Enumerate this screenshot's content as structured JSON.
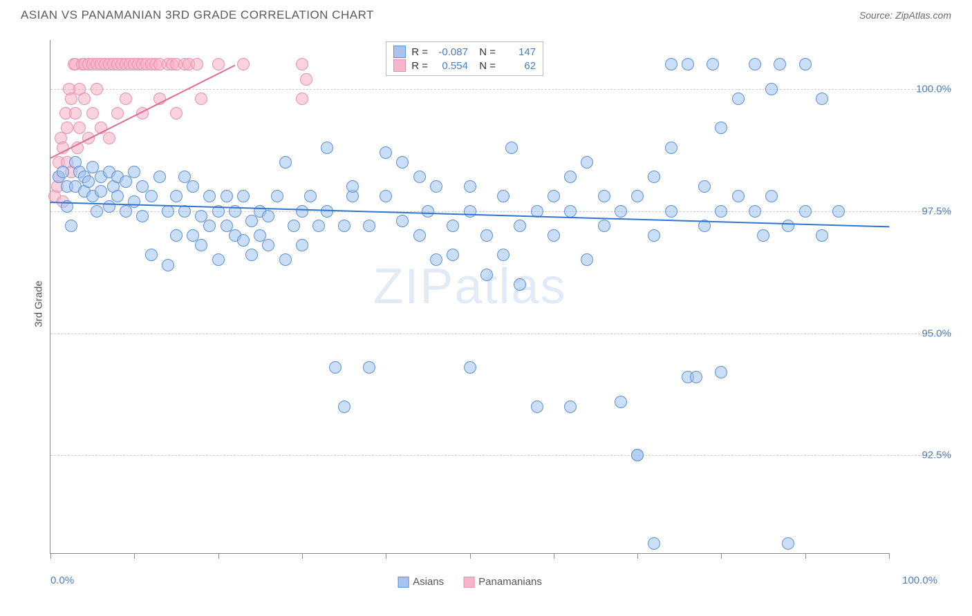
{
  "title": "ASIAN VS PANAMANIAN 3RD GRADE CORRELATION CHART",
  "source": "Source: ZipAtlas.com",
  "ylabel": "3rd Grade",
  "watermark": {
    "zip": "ZIP",
    "atlas": "atlas"
  },
  "chart": {
    "type": "scatter",
    "background_color": "#ffffff",
    "grid_color": "#cccccc",
    "axis_color": "#888888",
    "xlim": [
      0,
      100
    ],
    "ylim": [
      90.5,
      101
    ],
    "xtick_step": 10,
    "yticks": [
      92.5,
      95.0,
      97.5,
      100.0
    ],
    "ytick_labels": [
      "92.5%",
      "95.0%",
      "97.5%",
      "100.0%"
    ],
    "xlabel_min": "0.0%",
    "xlabel_max": "100.0%",
    "marker_radius": 9,
    "marker_stroke_width": 1.5,
    "series": [
      {
        "name": "Asians",
        "label": "Asians",
        "fill_color": "rgba(160,195,240,0.55)",
        "stroke_color": "#5b8fd6",
        "swatch_fill": "#a9c4ec",
        "swatch_border": "#5b8fd6",
        "R": "-0.087",
        "N": "147",
        "trend": {
          "x1": 0,
          "y1": 97.7,
          "x2": 100,
          "y2": 97.2,
          "color": "#2f74d0",
          "width": 2
        },
        "points": [
          [
            1,
            98.2
          ],
          [
            1.5,
            98.3
          ],
          [
            2,
            98.0
          ],
          [
            2,
            97.6
          ],
          [
            2.5,
            97.2
          ],
          [
            3,
            98.5
          ],
          [
            3,
            98.0
          ],
          [
            3.5,
            98.3
          ],
          [
            4,
            97.9
          ],
          [
            4,
            98.2
          ],
          [
            4.5,
            98.1
          ],
          [
            5,
            98.4
          ],
          [
            5,
            97.8
          ],
          [
            5.5,
            97.5
          ],
          [
            6,
            98.2
          ],
          [
            6,
            97.9
          ],
          [
            7,
            98.3
          ],
          [
            7,
            97.6
          ],
          [
            7.5,
            98.0
          ],
          [
            8,
            97.8
          ],
          [
            8,
            98.2
          ],
          [
            9,
            97.5
          ],
          [
            9,
            98.1
          ],
          [
            10,
            97.7
          ],
          [
            10,
            98.3
          ],
          [
            11,
            98.0
          ],
          [
            11,
            97.4
          ],
          [
            12,
            97.8
          ],
          [
            12,
            96.6
          ],
          [
            13,
            98.2
          ],
          [
            14,
            97.5
          ],
          [
            14,
            96.4
          ],
          [
            15,
            97.0
          ],
          [
            15,
            97.8
          ],
          [
            16,
            97.5
          ],
          [
            16,
            98.2
          ],
          [
            17,
            97.0
          ],
          [
            17,
            98.0
          ],
          [
            18,
            97.4
          ],
          [
            18,
            96.8
          ],
          [
            19,
            97.2
          ],
          [
            19,
            97.8
          ],
          [
            20,
            97.5
          ],
          [
            20,
            96.5
          ],
          [
            21,
            97.8
          ],
          [
            21,
            97.2
          ],
          [
            22,
            97.0
          ],
          [
            22,
            97.5
          ],
          [
            23,
            97.8
          ],
          [
            23,
            96.9
          ],
          [
            24,
            96.6
          ],
          [
            24,
            97.3
          ],
          [
            25,
            97.5
          ],
          [
            25,
            97.0
          ],
          [
            26,
            96.8
          ],
          [
            26,
            97.4
          ],
          [
            27,
            97.8
          ],
          [
            28,
            96.5
          ],
          [
            28,
            98.5
          ],
          [
            29,
            97.2
          ],
          [
            30,
            97.5
          ],
          [
            30,
            96.8
          ],
          [
            31,
            97.8
          ],
          [
            32,
            97.2
          ],
          [
            33,
            98.8
          ],
          [
            33,
            97.5
          ],
          [
            34,
            94.3
          ],
          [
            35,
            97.2
          ],
          [
            35,
            93.5
          ],
          [
            36,
            97.8
          ],
          [
            36,
            98.0
          ],
          [
            38,
            97.2
          ],
          [
            38,
            94.3
          ],
          [
            40,
            98.7
          ],
          [
            40,
            97.8
          ],
          [
            42,
            97.3
          ],
          [
            42,
            98.5
          ],
          [
            44,
            97.0
          ],
          [
            44,
            98.2
          ],
          [
            45,
            97.5
          ],
          [
            46,
            96.5
          ],
          [
            46,
            98.0
          ],
          [
            48,
            97.2
          ],
          [
            48,
            96.6
          ],
          [
            50,
            97.5
          ],
          [
            50,
            98.0
          ],
          [
            50,
            94.3
          ],
          [
            52,
            97.0
          ],
          [
            52,
            96.2
          ],
          [
            54,
            97.8
          ],
          [
            54,
            96.6
          ],
          [
            55,
            98.8
          ],
          [
            56,
            97.2
          ],
          [
            56,
            96.0
          ],
          [
            58,
            97.5
          ],
          [
            58,
            93.5
          ],
          [
            60,
            97.8
          ],
          [
            60,
            97.0
          ],
          [
            62,
            98.2
          ],
          [
            62,
            97.5
          ],
          [
            62,
            93.5
          ],
          [
            64,
            98.5
          ],
          [
            64,
            96.5
          ],
          [
            66,
            97.2
          ],
          [
            66,
            97.8
          ],
          [
            68,
            97.5
          ],
          [
            68,
            93.6
          ],
          [
            70,
            97.8
          ],
          [
            70,
            92.5
          ],
          [
            70,
            92.5
          ],
          [
            72,
            97.0
          ],
          [
            72,
            98.2
          ],
          [
            74,
            97.5
          ],
          [
            74,
            98.8
          ],
          [
            74,
            100.5
          ],
          [
            76,
            100.5
          ],
          [
            76,
            94.1
          ],
          [
            77,
            94.1
          ],
          [
            78,
            98.0
          ],
          [
            78,
            97.2
          ],
          [
            79,
            100.5
          ],
          [
            80,
            99.2
          ],
          [
            80,
            97.5
          ],
          [
            80,
            94.2
          ],
          [
            82,
            97.8
          ],
          [
            82,
            99.8
          ],
          [
            84,
            97.5
          ],
          [
            84,
            100.5
          ],
          [
            85,
            97.0
          ],
          [
            86,
            97.8
          ],
          [
            86,
            100.0
          ],
          [
            88,
            97.2
          ],
          [
            88,
            90.7
          ],
          [
            90,
            97.5
          ],
          [
            90,
            100.5
          ],
          [
            87,
            100.5
          ],
          [
            92,
            97.0
          ],
          [
            92,
            99.8
          ],
          [
            94,
            97.5
          ],
          [
            72,
            90.7
          ]
        ]
      },
      {
        "name": "Panamanians",
        "label": "Panamanians",
        "fill_color": "rgba(248,175,195,0.55)",
        "stroke_color": "#e78fb0",
        "swatch_fill": "#f5b5ca",
        "swatch_border": "#e78fb0",
        "R": "0.554",
        "N": "62",
        "trend": {
          "x1": 0,
          "y1": 98.6,
          "x2": 22,
          "y2": 100.5,
          "color": "#e06a94",
          "width": 2
        },
        "points": [
          [
            0.5,
            97.8
          ],
          [
            0.8,
            98.0
          ],
          [
            1,
            98.5
          ],
          [
            1,
            98.2
          ],
          [
            1.2,
            99.0
          ],
          [
            1.5,
            98.8
          ],
          [
            1.5,
            97.7
          ],
          [
            1.8,
            99.5
          ],
          [
            2,
            98.5
          ],
          [
            2,
            99.2
          ],
          [
            2.2,
            100.0
          ],
          [
            2.5,
            99.8
          ],
          [
            2.5,
            98.3
          ],
          [
            2.8,
            100.5
          ],
          [
            3,
            99.5
          ],
          [
            3,
            100.5
          ],
          [
            3.2,
            98.8
          ],
          [
            3.5,
            100.0
          ],
          [
            3.5,
            99.2
          ],
          [
            3.8,
            100.5
          ],
          [
            4,
            99.8
          ],
          [
            4,
            100.5
          ],
          [
            4.5,
            100.5
          ],
          [
            4.5,
            99.0
          ],
          [
            5,
            100.5
          ],
          [
            5,
            99.5
          ],
          [
            5.5,
            100.5
          ],
          [
            5.5,
            100.0
          ],
          [
            6,
            100.5
          ],
          [
            6,
            99.2
          ],
          [
            6.5,
            100.5
          ],
          [
            7,
            100.5
          ],
          [
            7,
            99.0
          ],
          [
            7.5,
            100.5
          ],
          [
            8,
            100.5
          ],
          [
            8,
            99.5
          ],
          [
            8.5,
            100.5
          ],
          [
            9,
            100.5
          ],
          [
            9,
            99.8
          ],
          [
            9.5,
            100.5
          ],
          [
            10,
            100.5
          ],
          [
            10.5,
            100.5
          ],
          [
            11,
            100.5
          ],
          [
            11,
            99.5
          ],
          [
            11.5,
            100.5
          ],
          [
            12,
            100.5
          ],
          [
            12.5,
            100.5
          ],
          [
            13,
            100.5
          ],
          [
            13,
            99.8
          ],
          [
            14,
            100.5
          ],
          [
            14.5,
            100.5
          ],
          [
            15,
            100.5
          ],
          [
            15,
            99.5
          ],
          [
            16,
            100.5
          ],
          [
            16.5,
            100.5
          ],
          [
            17.5,
            100.5
          ],
          [
            18,
            99.8
          ],
          [
            20,
            100.5
          ],
          [
            23,
            100.5
          ],
          [
            30,
            100.5
          ],
          [
            30.5,
            100.2
          ],
          [
            30,
            99.8
          ]
        ]
      }
    ]
  },
  "legend_prefix_R": "R = ",
  "legend_prefix_N": "N = "
}
